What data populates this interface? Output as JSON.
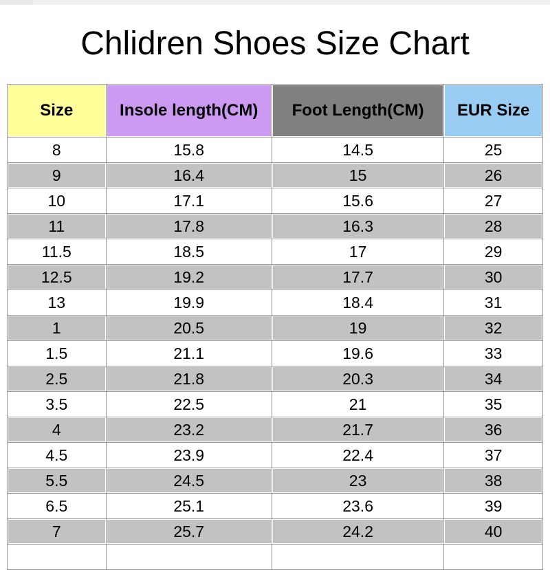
{
  "page_title": "Chlidren Shoes Size Chart",
  "colors": {
    "header_size_bg": "#FFFF99",
    "header_insole_bg": "#CC99F3",
    "header_foot_bg": "#808080",
    "header_eur_bg": "#99CCF2",
    "row_stripe_bg": "#C2C2C2",
    "row_plain_bg": "#FFFFFF",
    "grid_line": "#989898",
    "top_bar": "#F2F2F2",
    "text": "#000000"
  },
  "chart_data": {
    "type": "table",
    "title": "Chlidren Shoes Size Chart",
    "columns": [
      "Size",
      "Insole length(CM)",
      "Foot Length(CM)",
      "EUR Size"
    ],
    "rows": [
      [
        "8",
        "15.8",
        "14.5",
        "25"
      ],
      [
        "9",
        "16.4",
        "15",
        "26"
      ],
      [
        "10",
        "17.1",
        "15.6",
        "27"
      ],
      [
        "11",
        "17.8",
        "16.3",
        "28"
      ],
      [
        "11.5",
        "18.5",
        "17",
        "29"
      ],
      [
        "12.5",
        "19.2",
        "17.7",
        "30"
      ],
      [
        "13",
        "19.9",
        "18.4",
        "31"
      ],
      [
        "1",
        "20.5",
        "19",
        "32"
      ],
      [
        "1.5",
        "21.1",
        "19.6",
        "33"
      ],
      [
        "2.5",
        "21.8",
        "20.3",
        "34"
      ],
      [
        "3.5",
        "22.5",
        "21",
        "35"
      ],
      [
        "4",
        "23.2",
        "21.7",
        "36"
      ],
      [
        "4.5",
        "23.9",
        "22.4",
        "37"
      ],
      [
        "5.5",
        "24.5",
        "23",
        "38"
      ],
      [
        "6.5",
        "25.1",
        "23.6",
        "39"
      ],
      [
        "7",
        "25.7",
        "24.2",
        "40"
      ],
      [
        "",
        "",
        "",
        ""
      ]
    ],
    "layout": {
      "stripe_pattern": "alternating white and gray rows, last row empty",
      "alignment": "center"
    }
  }
}
